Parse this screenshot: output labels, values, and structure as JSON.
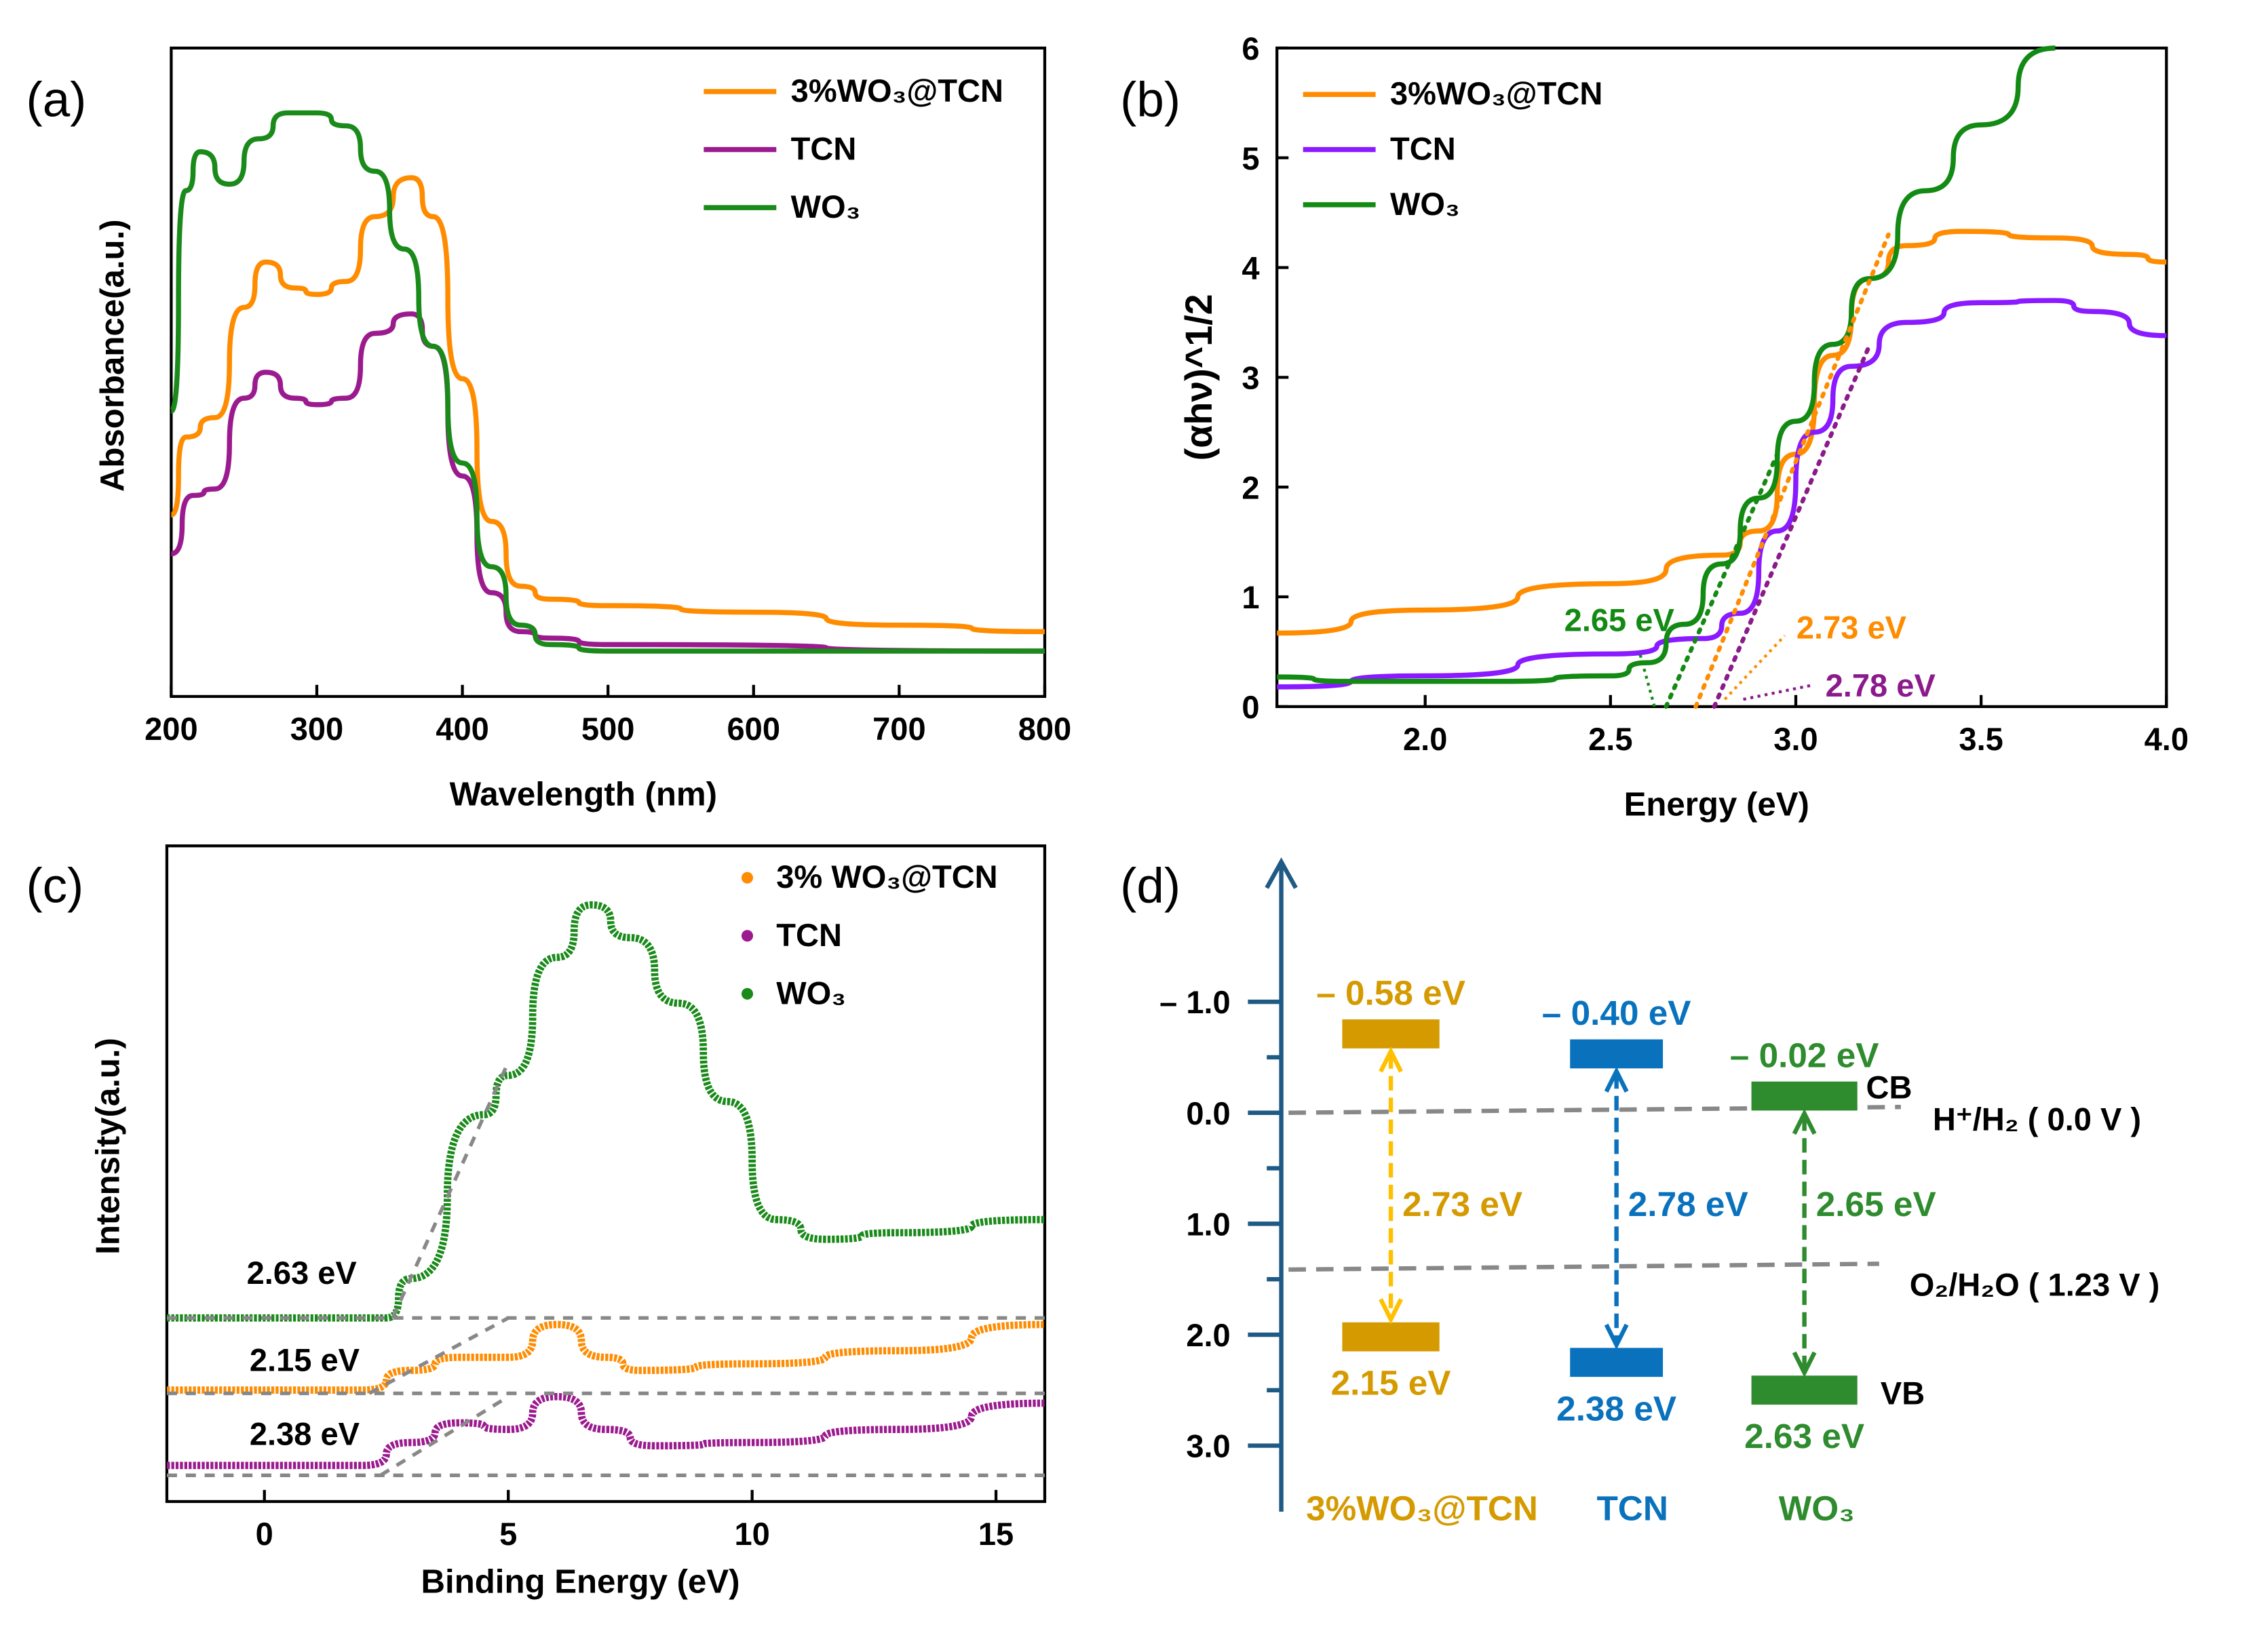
{
  "chart_data": [
    {
      "panel": "(a)",
      "type": "line",
      "xlabel": "Wavelength (nm)",
      "ylabel": "Absorbance(a.u.)",
      "xlim": [
        200,
        800
      ],
      "ylim": [
        0,
        1
      ],
      "xticks": [
        "200",
        "300",
        "400",
        "500",
        "600",
        "700",
        "800"
      ],
      "legend": "top-right",
      "series": [
        {
          "name": "3%WO₃@TCN",
          "color": "#ff8c00",
          "x": [
            200,
            210,
            230,
            250,
            265,
            285,
            300,
            320,
            340,
            365,
            380,
            400,
            420,
            440,
            460,
            500,
            600,
            700,
            800
          ],
          "y": [
            0.28,
            0.4,
            0.43,
            0.6,
            0.67,
            0.63,
            0.62,
            0.64,
            0.74,
            0.8,
            0.74,
            0.49,
            0.27,
            0.17,
            0.15,
            0.14,
            0.13,
            0.11,
            0.1
          ]
        },
        {
          "name": "TCN",
          "color": "#9b1b8f",
          "x": [
            200,
            215,
            230,
            250,
            265,
            285,
            300,
            320,
            340,
            365,
            380,
            400,
            420,
            440,
            460,
            500,
            800
          ],
          "y": [
            0.22,
            0.31,
            0.32,
            0.46,
            0.5,
            0.46,
            0.45,
            0.46,
            0.56,
            0.59,
            0.54,
            0.34,
            0.16,
            0.1,
            0.09,
            0.08,
            0.07
          ]
        },
        {
          "name": "WO₃",
          "color": "#1a8a1a",
          "x": [
            200,
            210,
            220,
            240,
            260,
            280,
            300,
            320,
            340,
            360,
            380,
            400,
            420,
            440,
            460,
            500,
            800
          ],
          "y": [
            0.44,
            0.78,
            0.84,
            0.79,
            0.86,
            0.9,
            0.9,
            0.88,
            0.81,
            0.69,
            0.54,
            0.36,
            0.2,
            0.11,
            0.08,
            0.07,
            0.07
          ]
        }
      ]
    },
    {
      "panel": "(b)",
      "type": "line",
      "xlabel": "Energy (eV)",
      "ylabel": "(αhν)^1/2",
      "xlim": [
        1.6,
        4.0
      ],
      "ylim": [
        0,
        6
      ],
      "xticks": [
        "2.0",
        "2.5",
        "3.0",
        "3.5",
        "4.0"
      ],
      "yticks": [
        "0",
        "1",
        "2",
        "3",
        "4",
        "5",
        "6"
      ],
      "legend": "top-left",
      "series": [
        {
          "name": "3%WO₃@TCN",
          "color": "#ff8c00",
          "x": [
            1.6,
            2.0,
            2.5,
            2.8,
            2.9,
            3.0,
            3.1,
            3.2,
            3.3,
            3.45,
            3.7,
            3.9,
            4.0
          ],
          "y": [
            0.67,
            0.88,
            1.12,
            1.38,
            1.6,
            2.3,
            3.2,
            3.9,
            4.2,
            4.33,
            4.27,
            4.12,
            4.05
          ]
        },
        {
          "name": "TCN",
          "color": "#8a1aff",
          "x": [
            1.6,
            2.0,
            2.5,
            2.75,
            2.85,
            2.95,
            3.05,
            3.15,
            3.3,
            3.5,
            3.7,
            3.8,
            4.0
          ],
          "y": [
            0.18,
            0.28,
            0.48,
            0.62,
            0.85,
            1.6,
            2.5,
            3.1,
            3.5,
            3.68,
            3.7,
            3.6,
            3.38
          ]
        },
        {
          "name": "WO₃",
          "color": "#138a13",
          "x": [
            1.6,
            1.8,
            2.2,
            2.5,
            2.6,
            2.7,
            2.8,
            2.9,
            3.0,
            3.1,
            3.2,
            3.35,
            3.5,
            3.7
          ],
          "y": [
            0.27,
            0.23,
            0.23,
            0.28,
            0.4,
            0.75,
            1.3,
            1.9,
            2.6,
            3.3,
            3.9,
            4.7,
            5.3,
            6.0
          ]
        }
      ],
      "fits": [
        {
          "label": "2.65 eV",
          "intercept": 2.65,
          "color": "#138a13"
        },
        {
          "label": "2.73 eV",
          "intercept": 2.73,
          "color": "#ff8c00"
        },
        {
          "label": "2.78 eV",
          "intercept": 2.78,
          "color": "#8b1a8b"
        }
      ]
    },
    {
      "panel": "(c)",
      "type": "scatter",
      "xlabel": "Binding Energy (eV)",
      "ylabel": "Intensity(a.u.)",
      "xlim": [
        -2,
        16
      ],
      "ylim": [
        0,
        1
      ],
      "xticks": [
        "0",
        "5",
        "10",
        "15"
      ],
      "legend": "top-right",
      "series": [
        {
          "name": "3% WO₃@TCN",
          "color": "#ff8c00",
          "x": [
            -2,
            2,
            3,
            4,
            5,
            6,
            7,
            7.7,
            10,
            13,
            16
          ],
          "y": [
            0.17,
            0.17,
            0.2,
            0.22,
            0.22,
            0.27,
            0.22,
            0.2,
            0.21,
            0.23,
            0.27
          ]
        },
        {
          "name": "TCN",
          "color": "#9b1b8f",
          "x": [
            -2,
            2,
            3,
            4,
            5,
            6,
            7,
            8,
            10,
            13,
            16
          ],
          "y": [
            0.055,
            0.055,
            0.09,
            0.12,
            0.11,
            0.16,
            0.11,
            0.085,
            0.09,
            0.11,
            0.15
          ]
        },
        {
          "name": "WO₃",
          "color": "#1a8a1a",
          "x": [
            -2,
            2.5,
            3,
            4.5,
            5,
            6,
            6.7,
            7.5,
            8.5,
            9.5,
            10.5,
            11.5,
            13,
            16
          ],
          "y": [
            0.28,
            0.28,
            0.34,
            0.59,
            0.65,
            0.83,
            0.91,
            0.86,
            0.76,
            0.61,
            0.43,
            0.4,
            0.41,
            0.43
          ]
        }
      ],
      "annotations": [
        "2.63 eV",
        "2.15 eV",
        "2.38 eV"
      ]
    },
    {
      "panel": "(d)",
      "type": "diagram",
      "yticks": [
        "– 1.0",
        "0.0",
        "1.0",
        "2.0",
        "3.0"
      ],
      "materials": [
        {
          "name": "3%WO₃@TCN",
          "color": "#d49a00",
          "arrow": "#ffc000",
          "cb": -0.58,
          "vb": 2.15,
          "cb_label": "– 0.58 eV",
          "vb_label": "2.15 eV",
          "gap_label": "2.73 eV"
        },
        {
          "name": "TCN",
          "color": "#0a72bd",
          "arrow": "#0a72bd",
          "cb": -0.4,
          "vb": 2.38,
          "cb_label": "– 0.40 eV",
          "vb_label": "2.38 eV",
          "gap_label": "2.78 eV"
        },
        {
          "name": "WO₃",
          "color": "#2e8b2e",
          "arrow": "#2e8b2e",
          "cb": -0.02,
          "vb": 2.63,
          "cb_label": "– 0.02 eV",
          "vb_label": "2.63 eV",
          "gap_label": "2.65 eV"
        }
      ],
      "cb_text": "CB",
      "vb_text": "VB",
      "levels": [
        {
          "label": "H⁺/H₂ ( 0.0 V )",
          "value": 0.0
        },
        {
          "label": "O₂/H₂O ( 1.23 V )",
          "value": 1.23
        }
      ]
    }
  ]
}
